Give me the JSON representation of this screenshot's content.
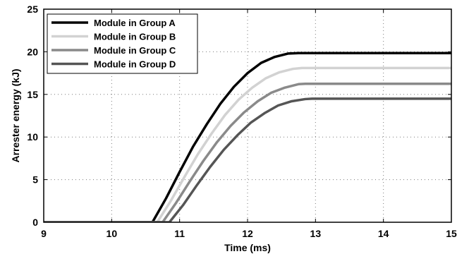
{
  "chart_data": {
    "type": "line",
    "title": "",
    "xlabel": "Time (ms)",
    "ylabel": "Arrester energy (kJ)",
    "xlim": [
      9,
      15
    ],
    "ylim": [
      0,
      25
    ],
    "xticks": [
      9,
      10,
      11,
      12,
      13,
      14,
      15
    ],
    "yticks": [
      0,
      5,
      10,
      15,
      20,
      25
    ],
    "grid": true,
    "legend_position": "top-left",
    "series": [
      {
        "name": "Module in Group A",
        "color": "#000000",
        "x": [
          9.0,
          10.6,
          10.8,
          11.0,
          11.2,
          11.4,
          11.6,
          11.8,
          12.0,
          12.2,
          12.4,
          12.6,
          12.75,
          13.0,
          14.0,
          15.0
        ],
        "y": [
          0,
          0,
          2.8,
          5.9,
          8.9,
          11.5,
          13.9,
          15.9,
          17.5,
          18.7,
          19.4,
          19.8,
          19.85,
          19.85,
          19.85,
          19.85
        ]
      },
      {
        "name": "Module in Group B",
        "color": "#d2d2d2",
        "x": [
          9.0,
          10.67,
          10.87,
          11.07,
          11.27,
          11.47,
          11.67,
          11.87,
          12.07,
          12.27,
          12.47,
          12.67,
          12.8,
          13.0,
          14.0,
          15.0
        ],
        "y": [
          0,
          0,
          2.5,
          5.3,
          8.0,
          10.4,
          12.6,
          14.4,
          15.8,
          16.9,
          17.6,
          18.0,
          18.1,
          18.1,
          18.1,
          18.1
        ]
      },
      {
        "name": "Module in Group C",
        "color": "#8a8a8a",
        "x": [
          9.0,
          10.75,
          10.95,
          11.15,
          11.35,
          11.55,
          11.75,
          11.95,
          12.15,
          12.35,
          12.55,
          12.75,
          12.85,
          13.0,
          14.0,
          15.0
        ],
        "y": [
          0,
          0,
          2.3,
          4.8,
          7.2,
          9.4,
          11.3,
          12.9,
          14.2,
          15.2,
          15.8,
          16.2,
          16.25,
          16.25,
          16.25,
          16.25
        ]
      },
      {
        "name": "Module in Group D",
        "color": "#555555",
        "x": [
          9.0,
          10.85,
          11.05,
          11.25,
          11.45,
          11.65,
          11.85,
          12.05,
          12.25,
          12.45,
          12.65,
          12.85,
          12.95,
          13.1,
          14.0,
          15.0
        ],
        "y": [
          0,
          0,
          2.0,
          4.3,
          6.5,
          8.5,
          10.2,
          11.7,
          12.8,
          13.7,
          14.2,
          14.45,
          14.5,
          14.5,
          14.5,
          14.5
        ]
      }
    ]
  }
}
